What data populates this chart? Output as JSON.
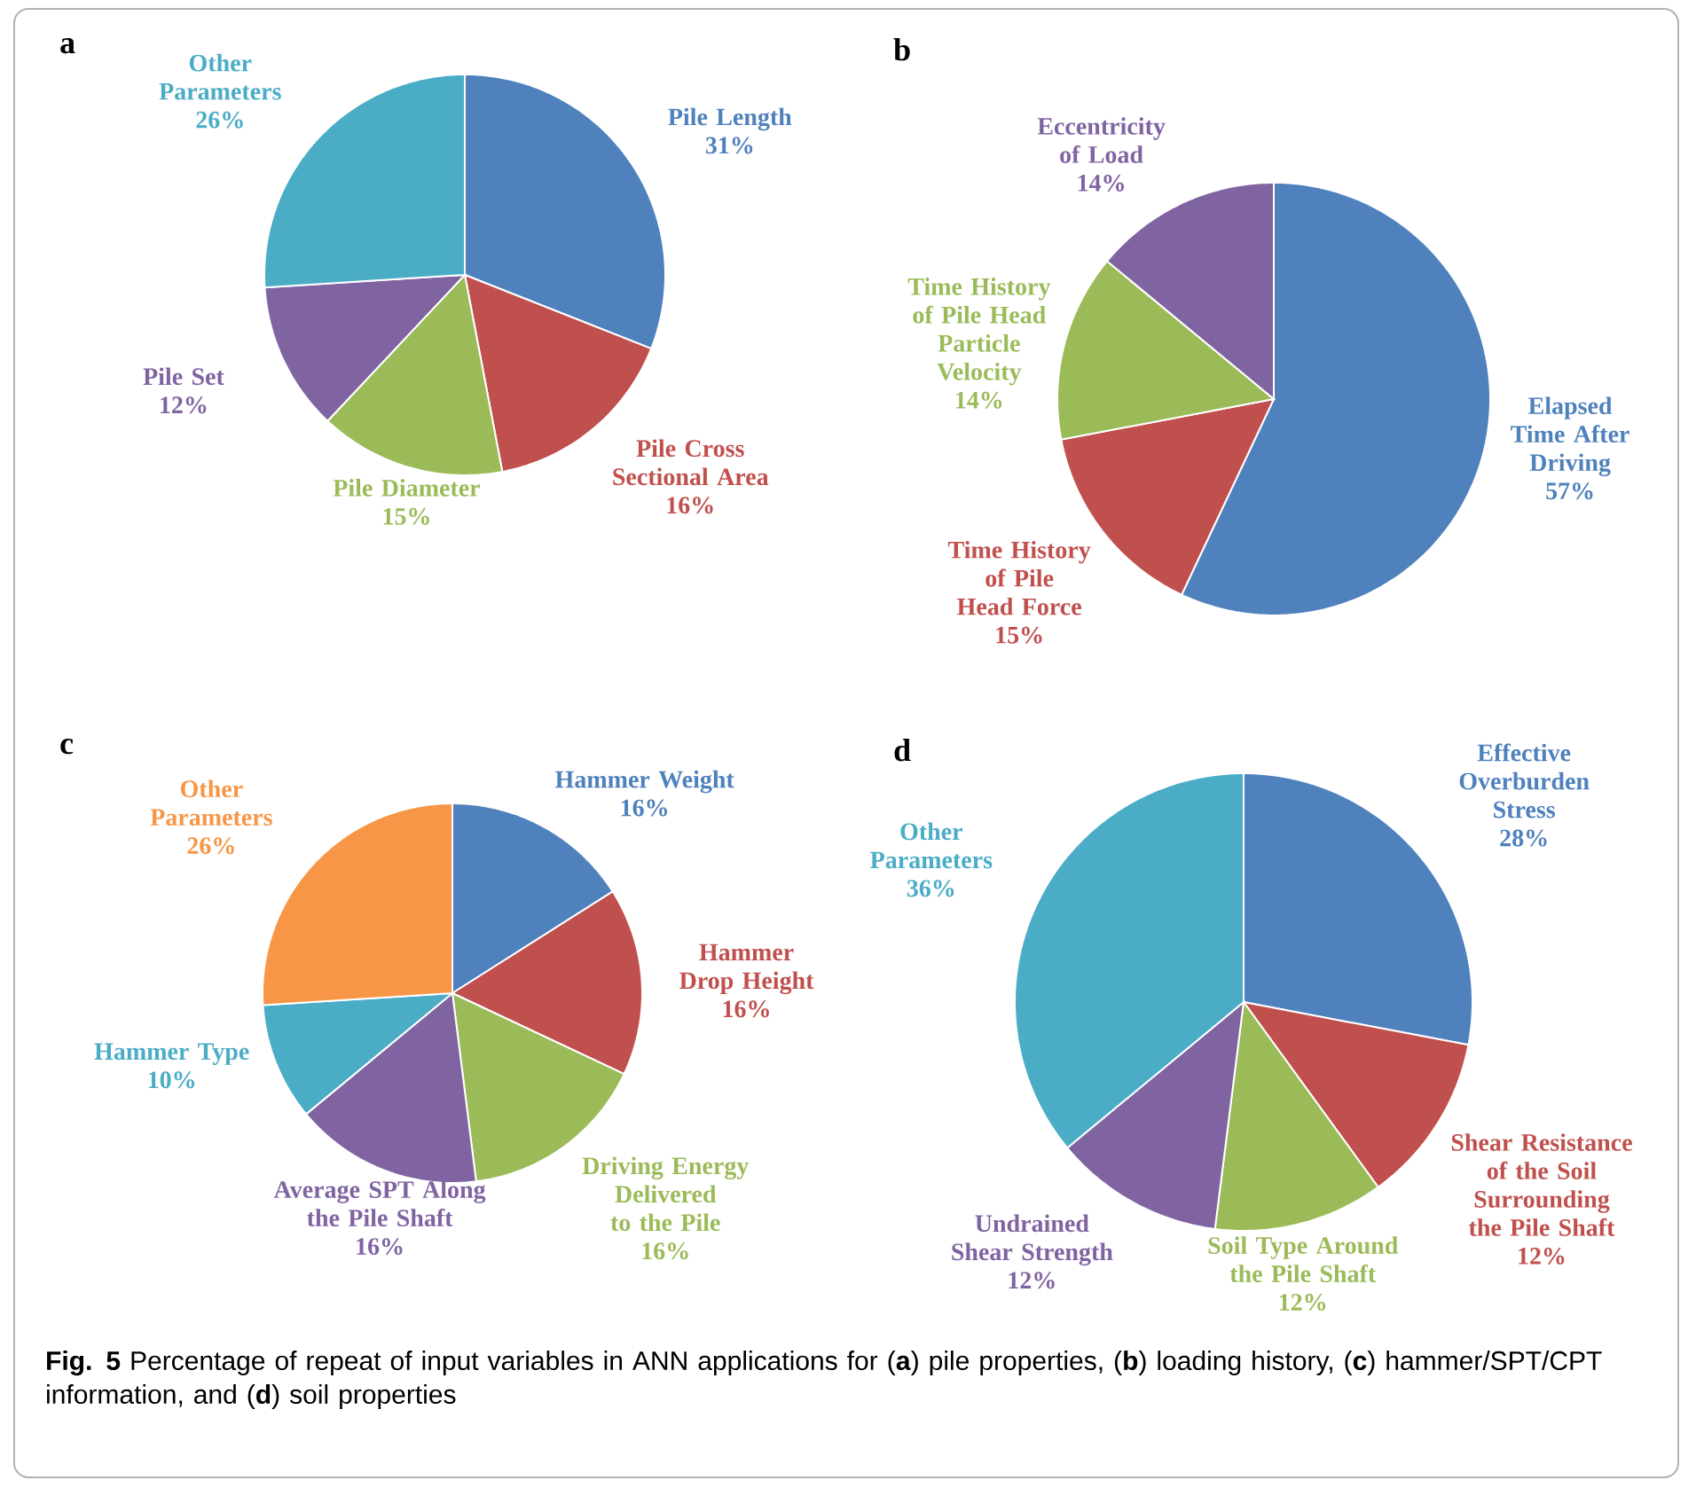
{
  "chart_data": [
    {
      "type": "pie",
      "title": "a",
      "categories": [
        "Pile Length",
        "Pile Cross Sectional Area",
        "Pile Diameter",
        "Pile Set",
        "Other Parameters"
      ],
      "values": [
        31,
        16,
        15,
        12,
        26
      ],
      "value_labels": [
        "31%",
        "16%",
        "15%",
        "12%",
        "26%"
      ],
      "colors": [
        "#4f81bd",
        "#c0504d",
        "#9bbb59",
        "#8064a2",
        "#4bacc6"
      ]
    },
    {
      "type": "pie",
      "title": "b",
      "categories": [
        "Elapsed Time After Driving",
        "Time History of Pile Head Force",
        "Time History of Pile Head Particle Velocity",
        "Eccentricity of Load"
      ],
      "values": [
        57,
        15,
        14,
        14
      ],
      "value_labels": [
        "57%",
        "15%",
        "14%",
        "14%"
      ],
      "colors": [
        "#4f81bd",
        "#c0504d",
        "#9bbb59",
        "#8064a2"
      ]
    },
    {
      "type": "pie",
      "title": "c",
      "categories": [
        "Hammer Weight",
        "Hammer Drop Height",
        "Driving Energy Delivered to the Pile",
        "Average SPT Along the Pile Shaft",
        "Hammer Type",
        "Other Parameters"
      ],
      "values": [
        16,
        16,
        16,
        16,
        10,
        26
      ],
      "value_labels": [
        "16%",
        "16%",
        "16%",
        "16%",
        "10%",
        "26%"
      ],
      "colors": [
        "#4f81bd",
        "#c0504d",
        "#9bbb59",
        "#8064a2",
        "#4bacc6",
        "#f79646"
      ]
    },
    {
      "type": "pie",
      "title": "d",
      "categories": [
        "Effective Overburden Stress",
        "Shear Resistance of the Soil Surrounding the Pile Shaft",
        "Soil Type Around the Pile Shaft",
        "Undrained Shear Strength",
        "Other Parameters"
      ],
      "values": [
        28,
        12,
        12,
        12,
        36
      ],
      "value_labels": [
        "28%",
        "12%",
        "12%",
        "12%",
        "36%"
      ],
      "colors": [
        "#4f81bd",
        "#c0504d",
        "#9bbb59",
        "#8064a2",
        "#4bacc6"
      ],
      "annotations": [
        "**Fig. 5** Percentage of repeat of input variables in ANN applications for (**a**) pile properties, (**b**) loading history, (**c**) hammer/SPT/CPT information, and (**d**) soil properties"
      ]
    }
  ]
}
